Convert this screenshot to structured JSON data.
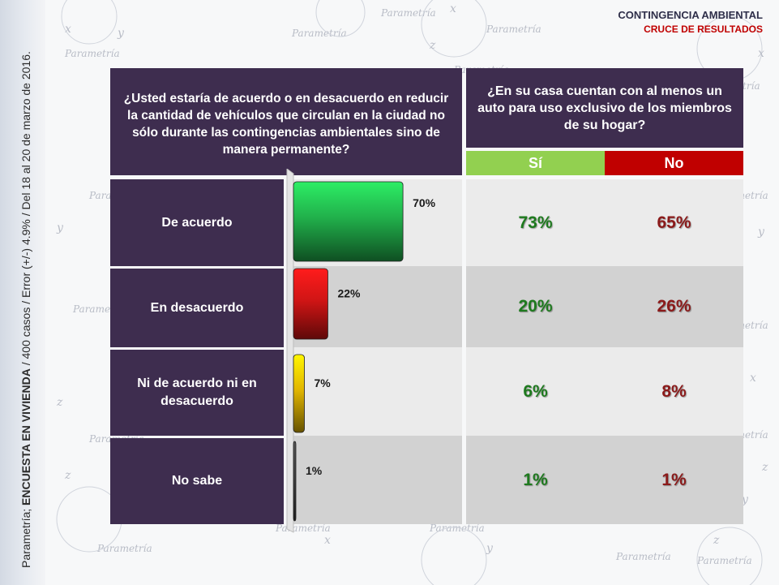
{
  "header": {
    "title": "CONTINGENCIA AMBIENTAL",
    "subtitle": "CRUCE DE RESULTADOS"
  },
  "side_note": {
    "prefix": "Parametría; ",
    "bold": "ENCUESTA EN VIVIENDA",
    "rest": " / 400 casos / Error (+/-) 4.9% / Del 18 al 20 de marzo de 2016."
  },
  "watermark": {
    "word": "Parametría",
    "letters": [
      "x",
      "y",
      "z"
    ]
  },
  "question_left": "¿Usted estaría de acuerdo o en desacuerdo en reducir la cantidad de vehículos que circulan en la ciudad no sólo durante las contingencias ambientales sino de manera permanente?",
  "question_right": "¿En su casa cuentan con al menos un auto para uso exclusivo de los miembros de su hogar?",
  "columns": {
    "si": "Sí",
    "no": "No"
  },
  "colors": {
    "panel": "#3e2d4f",
    "si": "#92d050",
    "no": "#c00000",
    "si_text": "#1e7a1e",
    "no_text": "#8b1a1a"
  },
  "chart_data": {
    "type": "bar",
    "orientation": "horizontal",
    "categories": [
      "De acuerdo",
      "En desacuerdo",
      "Ni de acuerdo ni en desacuerdo",
      "No sabe"
    ],
    "values": [
      70,
      22,
      7,
      1
    ],
    "labels": [
      "70%",
      "22%",
      "7%",
      "1%"
    ],
    "colors": [
      "#21b04b",
      "#d01515",
      "#e2b600",
      "#404040"
    ],
    "xlim": [
      0,
      100
    ],
    "grid": false,
    "legend": "none"
  },
  "cross_table": {
    "rows": [
      {
        "label": "De acuerdo",
        "si": "73%",
        "no": "65%"
      },
      {
        "label": "En desacuerdo",
        "si": "20%",
        "no": "26%"
      },
      {
        "label": "Ni de acuerdo ni en desacuerdo",
        "si": "6%",
        "no": "8%"
      },
      {
        "label": "No sabe",
        "si": "1%",
        "no": "1%"
      }
    ]
  }
}
